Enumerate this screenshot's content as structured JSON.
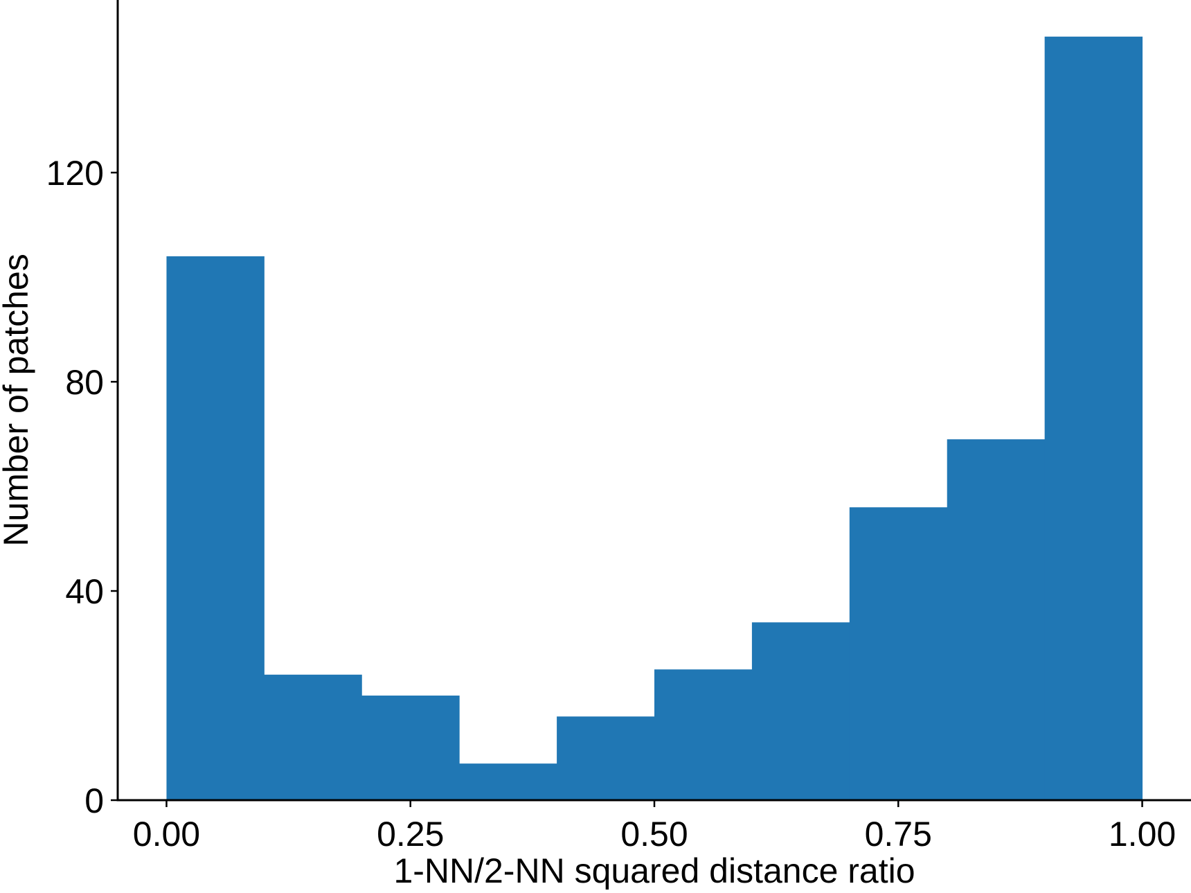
{
  "chart_data": {
    "type": "bar",
    "subtype": "histogram",
    "title": "",
    "xlabel": "1-NN/2-NN squared distance ratio",
    "ylabel": "Number of patches",
    "bin_edges": [
      0.0,
      0.1,
      0.2,
      0.3,
      0.4,
      0.5,
      0.6,
      0.7,
      0.8,
      0.9,
      1.0
    ],
    "values": [
      104,
      24,
      20,
      7,
      16,
      25,
      34,
      56,
      69,
      146
    ],
    "xlim": [
      -0.05,
      1.05
    ],
    "ylim": [
      0,
      153
    ],
    "xticks": [
      0.0,
      0.25,
      0.5,
      0.75,
      1.0
    ],
    "xtick_labels": [
      "0.00",
      "0.25",
      "0.50",
      "0.75",
      "1.00"
    ],
    "yticks": [
      0,
      40,
      80,
      120
    ],
    "ytick_labels": [
      "0",
      "40",
      "80",
      "120"
    ],
    "bar_color": "#2077b4",
    "grid": false,
    "spines": [
      "left",
      "bottom"
    ]
  }
}
